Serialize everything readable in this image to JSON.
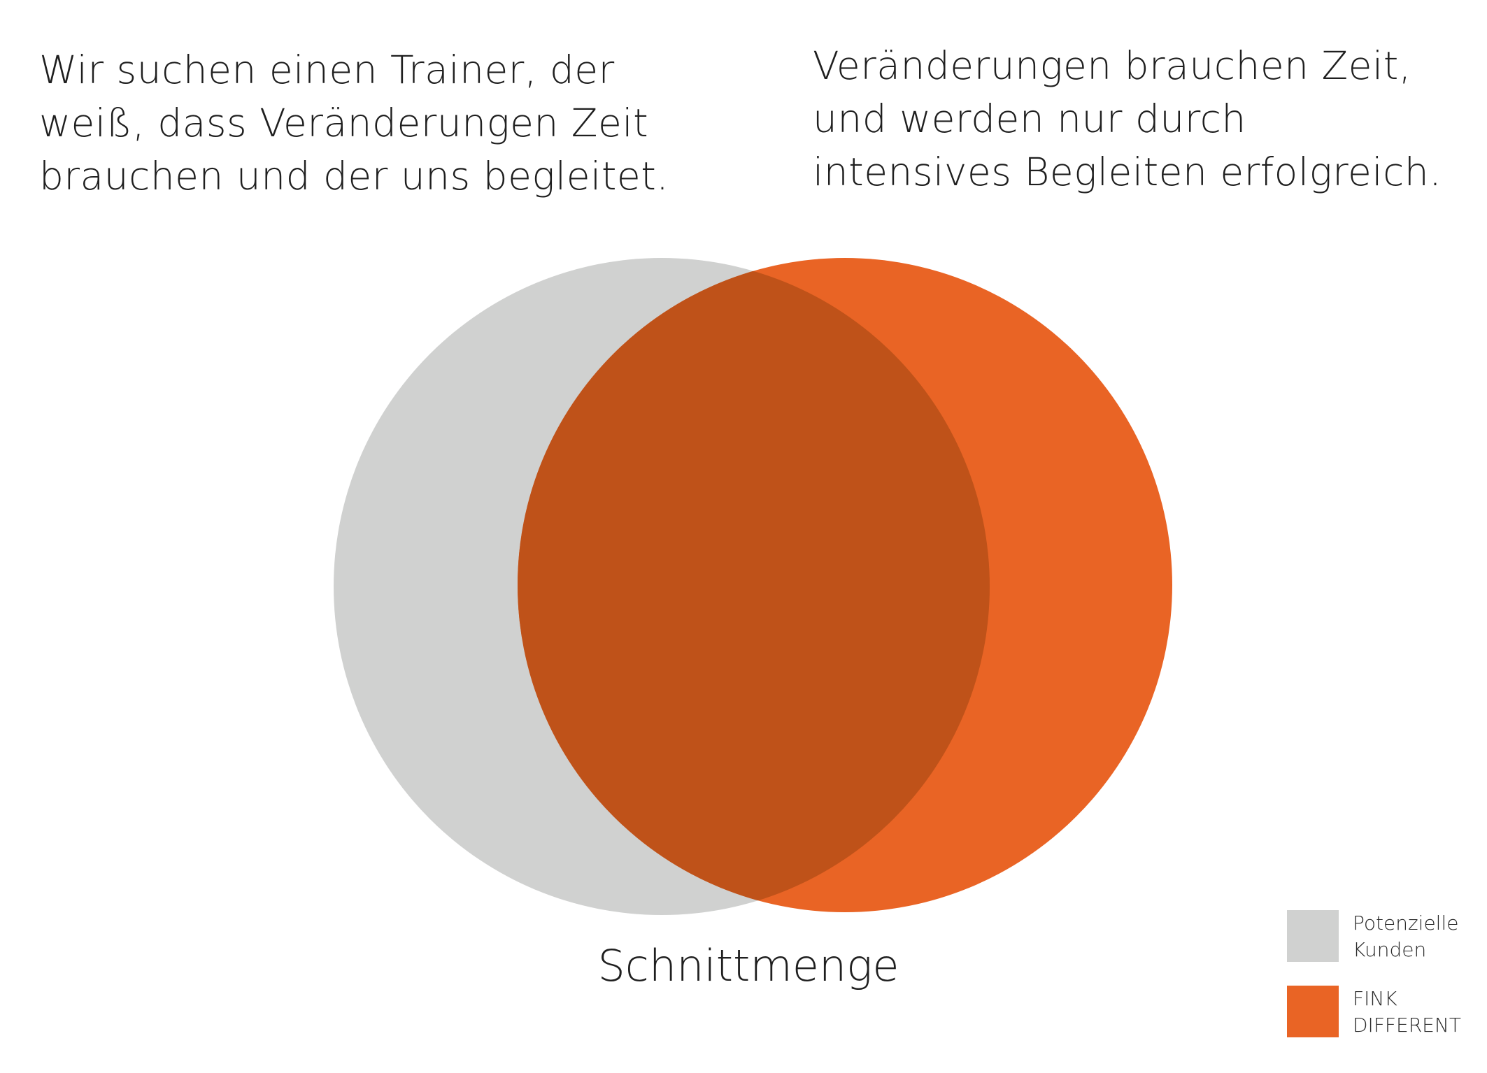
{
  "quotes": {
    "left": {
      "line1": "Wir suchen einen Trainer, der",
      "line2": "weiß, dass Veränderungen Zeit",
      "line3": "brauchen und der uns begleitet."
    },
    "right": {
      "line1": "Veränderungen brauchen Zeit,",
      "line2": "und werden nur durch",
      "line3": "intensives Begleiten erfolgreich."
    }
  },
  "venn": {
    "intersection_label": "Schnittmenge",
    "colors": {
      "left_set": "#d0d1d0",
      "right_set": "#e96425",
      "overlap": "#bf5219"
    }
  },
  "legend": [
    {
      "line1": "Potenzielle",
      "line2": "Kunden",
      "color": "#d0d1d0"
    },
    {
      "line1": "FINK",
      "line2": "DIFFERENT",
      "color": "#e96425"
    }
  ]
}
